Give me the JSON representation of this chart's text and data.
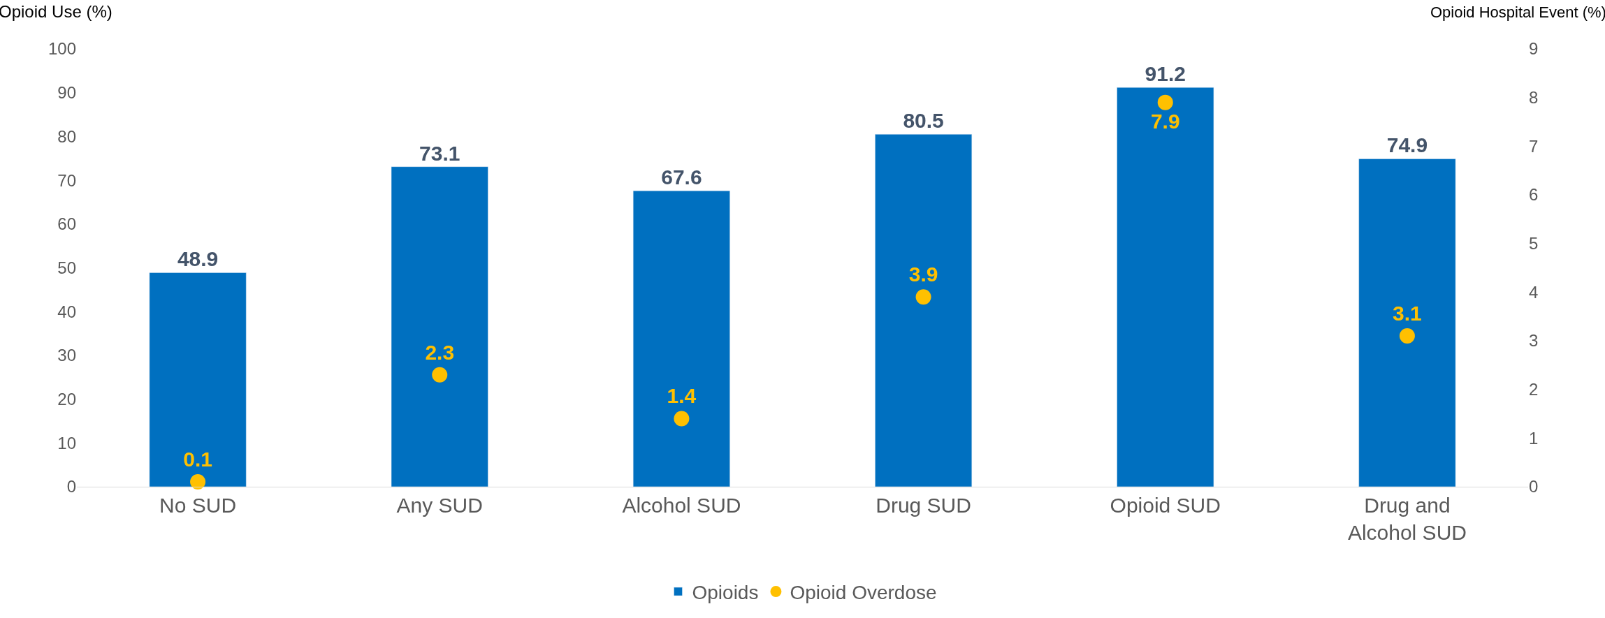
{
  "chart_data": {
    "type": "bar",
    "categories": [
      "No SUD",
      "Any SUD",
      "Alcohol SUD",
      "Drug SUD",
      "Opioid SUD",
      "Drug and Alcohol SUD"
    ],
    "ylabel": "Opioid Use (%)",
    "y2label": "Opioid Hospital Event (%)",
    "series": [
      {
        "name": "Opioids",
        "color": "#0070c0",
        "values": [
          48.9,
          73.1,
          67.6,
          80.5,
          91.2,
          74.9
        ]
      },
      {
        "name": "Opioid Overdose",
        "type": "scatter",
        "axis": "y2",
        "color": "#ffc000",
        "marker": "circle",
        "values": [
          0.1,
          2.3,
          1.4,
          3.9,
          7.9,
          3.1
        ]
      }
    ],
    "ylim": [
      0,
      100
    ],
    "yticks": [
      0,
      10,
      20,
      30,
      40,
      50,
      60,
      70,
      80,
      90,
      100
    ],
    "y2lim": [
      0,
      9
    ],
    "y2ticks": [
      0,
      1,
      2,
      3,
      4,
      5,
      6,
      7,
      8,
      9
    ],
    "data_labels": true,
    "legend": "bottom"
  }
}
